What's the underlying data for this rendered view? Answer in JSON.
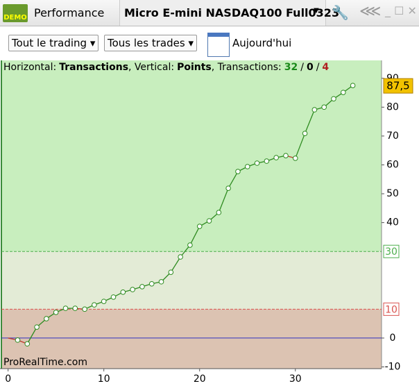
{
  "toolbar": {
    "badge": "DEMO",
    "tab": "Performance",
    "instrument": "Micro E-mini NASDAQ100 Full0323"
  },
  "filters": {
    "scope": "Tout le trading",
    "trades": "Tous les trades",
    "period": "Aujourd'hui"
  },
  "info": {
    "h_label": "Horizontal:",
    "h_value": "Transactions",
    "v_label": ", Vertical:",
    "v_value": "Points",
    "t_label": ", Transactions:",
    "wins": 32,
    "sep1": "/",
    "even": 0,
    "sep2": "/",
    "losses": 4
  },
  "watermark": "ProRealTime.com",
  "chart_data": {
    "type": "line",
    "x": [
      0,
      1,
      2,
      3,
      4,
      5,
      6,
      7,
      8,
      9,
      10,
      11,
      12,
      13,
      14,
      15,
      16,
      17,
      18,
      19,
      20,
      21,
      22,
      23,
      24,
      25,
      26,
      27,
      28,
      29,
      30,
      31,
      32,
      33,
      34,
      35,
      36
    ],
    "series": [
      {
        "color": "#2e8b20",
        "down_color": "#c0392b",
        "values": [
          0,
          -0.7,
          -2,
          3.8,
          6.7,
          8.9,
          10.3,
          10.3,
          10,
          11.5,
          12.7,
          14.2,
          15.9,
          16.8,
          17.8,
          18.8,
          19.5,
          22.8,
          28.1,
          32.2,
          38.7,
          40.6,
          43.5,
          51.9,
          57.7,
          59.4,
          60.6,
          61.3,
          62.5,
          63.2,
          62.3,
          70.9,
          79.1,
          80,
          82.9,
          85.1,
          87.5
        ],
        "value_labels": [
          null,
          null,
          null,
          null,
          null,
          null,
          null,
          null,
          null,
          null,
          null,
          null,
          null,
          null,
          null,
          null,
          null,
          null,
          null,
          null,
          null,
          null,
          null,
          null,
          null,
          null,
          null,
          null,
          null,
          null,
          null,
          null,
          null,
          null,
          null,
          null,
          "87,5"
        ]
      }
    ],
    "xlim": [
      -0.7,
      39
    ],
    "ylim": [
      -10.6,
      96.2
    ],
    "xticks": [
      0,
      10,
      20,
      30
    ],
    "yticks": [
      -10,
      0,
      40,
      50,
      60,
      70,
      80,
      90
    ],
    "thresholds": [
      {
        "value": 30,
        "color": "#4cae4c"
      },
      {
        "value": 10,
        "color": "#d9534f"
      }
    ],
    "zone_colors": [
      "#c8eebe",
      "#e3ebd6",
      "#dcc3b2"
    ],
    "zero_line_color": "#3030c0"
  }
}
